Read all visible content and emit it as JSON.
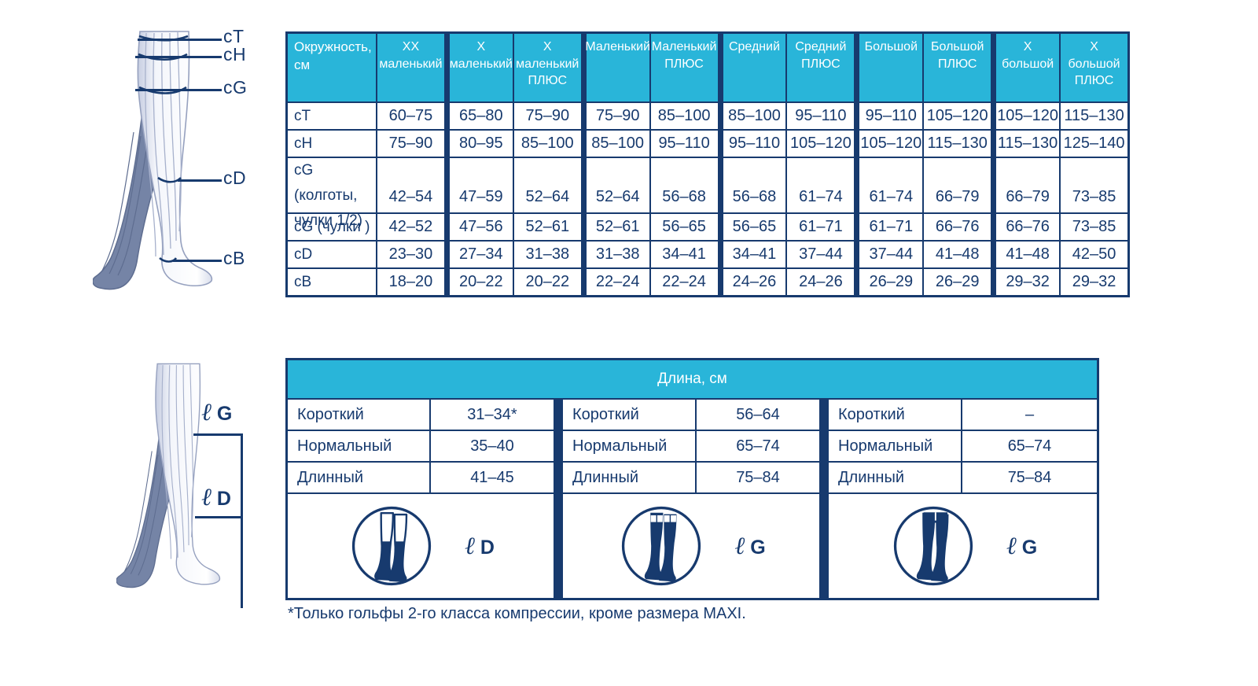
{
  "measure_diagram": {
    "labels": [
      "cT",
      "cH",
      "cG",
      "cD",
      "cB"
    ]
  },
  "size_table": {
    "corner": "Окружность, см",
    "columns": [
      "XX маленький",
      "X маленький",
      "X маленький ПЛЮС",
      "Маленький",
      "Маленький ПЛЮС",
      "Средний",
      "Средний ПЛЮС",
      "Большой",
      "Большой ПЛЮС",
      "X большой",
      "X большой ПЛЮС"
    ],
    "rows": [
      {
        "label": "cT",
        "values": [
          "60–75",
          "65–80",
          "75–90",
          "75–90",
          "85–100",
          "85–100",
          "95–110",
          "95–110",
          "105–120",
          "105–120",
          "115–130"
        ]
      },
      {
        "label": "cH",
        "values": [
          "75–90",
          "80–95",
          "85–100",
          "85–100",
          "95–110",
          "95–110",
          "105–120",
          "105–120",
          "115–130",
          "115–130",
          "125–140"
        ]
      },
      {
        "label": "cG (колготы, чулки 1/2)",
        "values": [
          "42–54",
          "47–59",
          "52–64",
          "52–64",
          "56–68",
          "56–68",
          "61–74",
          "61–74",
          "66–79",
          "66–79",
          "73–85"
        ]
      },
      {
        "label": "cG (чулки )",
        "values": [
          "42–52",
          "47–56",
          "52–61",
          "52–61",
          "56–65",
          "56–65",
          "61–71",
          "61–71",
          "66–76",
          "66–76",
          "73–85"
        ]
      },
      {
        "label": "cD",
        "values": [
          "23–30",
          "27–34",
          "31–38",
          "31–38",
          "34–41",
          "34–41",
          "37–44",
          "37–44",
          "41–48",
          "41–48",
          "42–50"
        ]
      },
      {
        "label": "cB",
        "values": [
          "18–20",
          "20–22",
          "20–22",
          "22–24",
          "22–24",
          "24–26",
          "24–26",
          "26–29",
          "26–29",
          "29–32",
          "29–32"
        ]
      }
    ]
  },
  "length_diagram": {
    "labels": [
      {
        "sym": "ℓ",
        "letter": "G"
      },
      {
        "sym": "ℓ",
        "letter": "D"
      }
    ]
  },
  "length_table": {
    "title": "Длина, см",
    "groups": [
      {
        "rows": [
          {
            "label": "Короткий",
            "value": "31–34*"
          },
          {
            "label": "Нормальный",
            "value": "35–40"
          },
          {
            "label": "Длинный",
            "value": "41–45"
          }
        ],
        "icon": "knee-sock-icon",
        "icon_sym": "ℓ",
        "icon_letter": "D"
      },
      {
        "rows": [
          {
            "label": "Короткий",
            "value": "56–64"
          },
          {
            "label": "Нормальный",
            "value": "65–74"
          },
          {
            "label": "Длинный",
            "value": "75–84"
          }
        ],
        "icon": "thigh-stocking-icon",
        "icon_sym": "ℓ",
        "icon_letter": "G"
      },
      {
        "rows": [
          {
            "label": "Короткий",
            "value": "–"
          },
          {
            "label": "Нормальный",
            "value": "65–74"
          },
          {
            "label": "Длинный",
            "value": "75–84"
          }
        ],
        "icon": "tights-icon",
        "icon_sym": "ℓ",
        "icon_letter": "G"
      }
    ]
  },
  "footnote": "*Только гольфы 2-го класса компрессии, кроме размера MAXI.",
  "colors": {
    "cyan": "#29B5D9",
    "navy": "#173A6E"
  }
}
